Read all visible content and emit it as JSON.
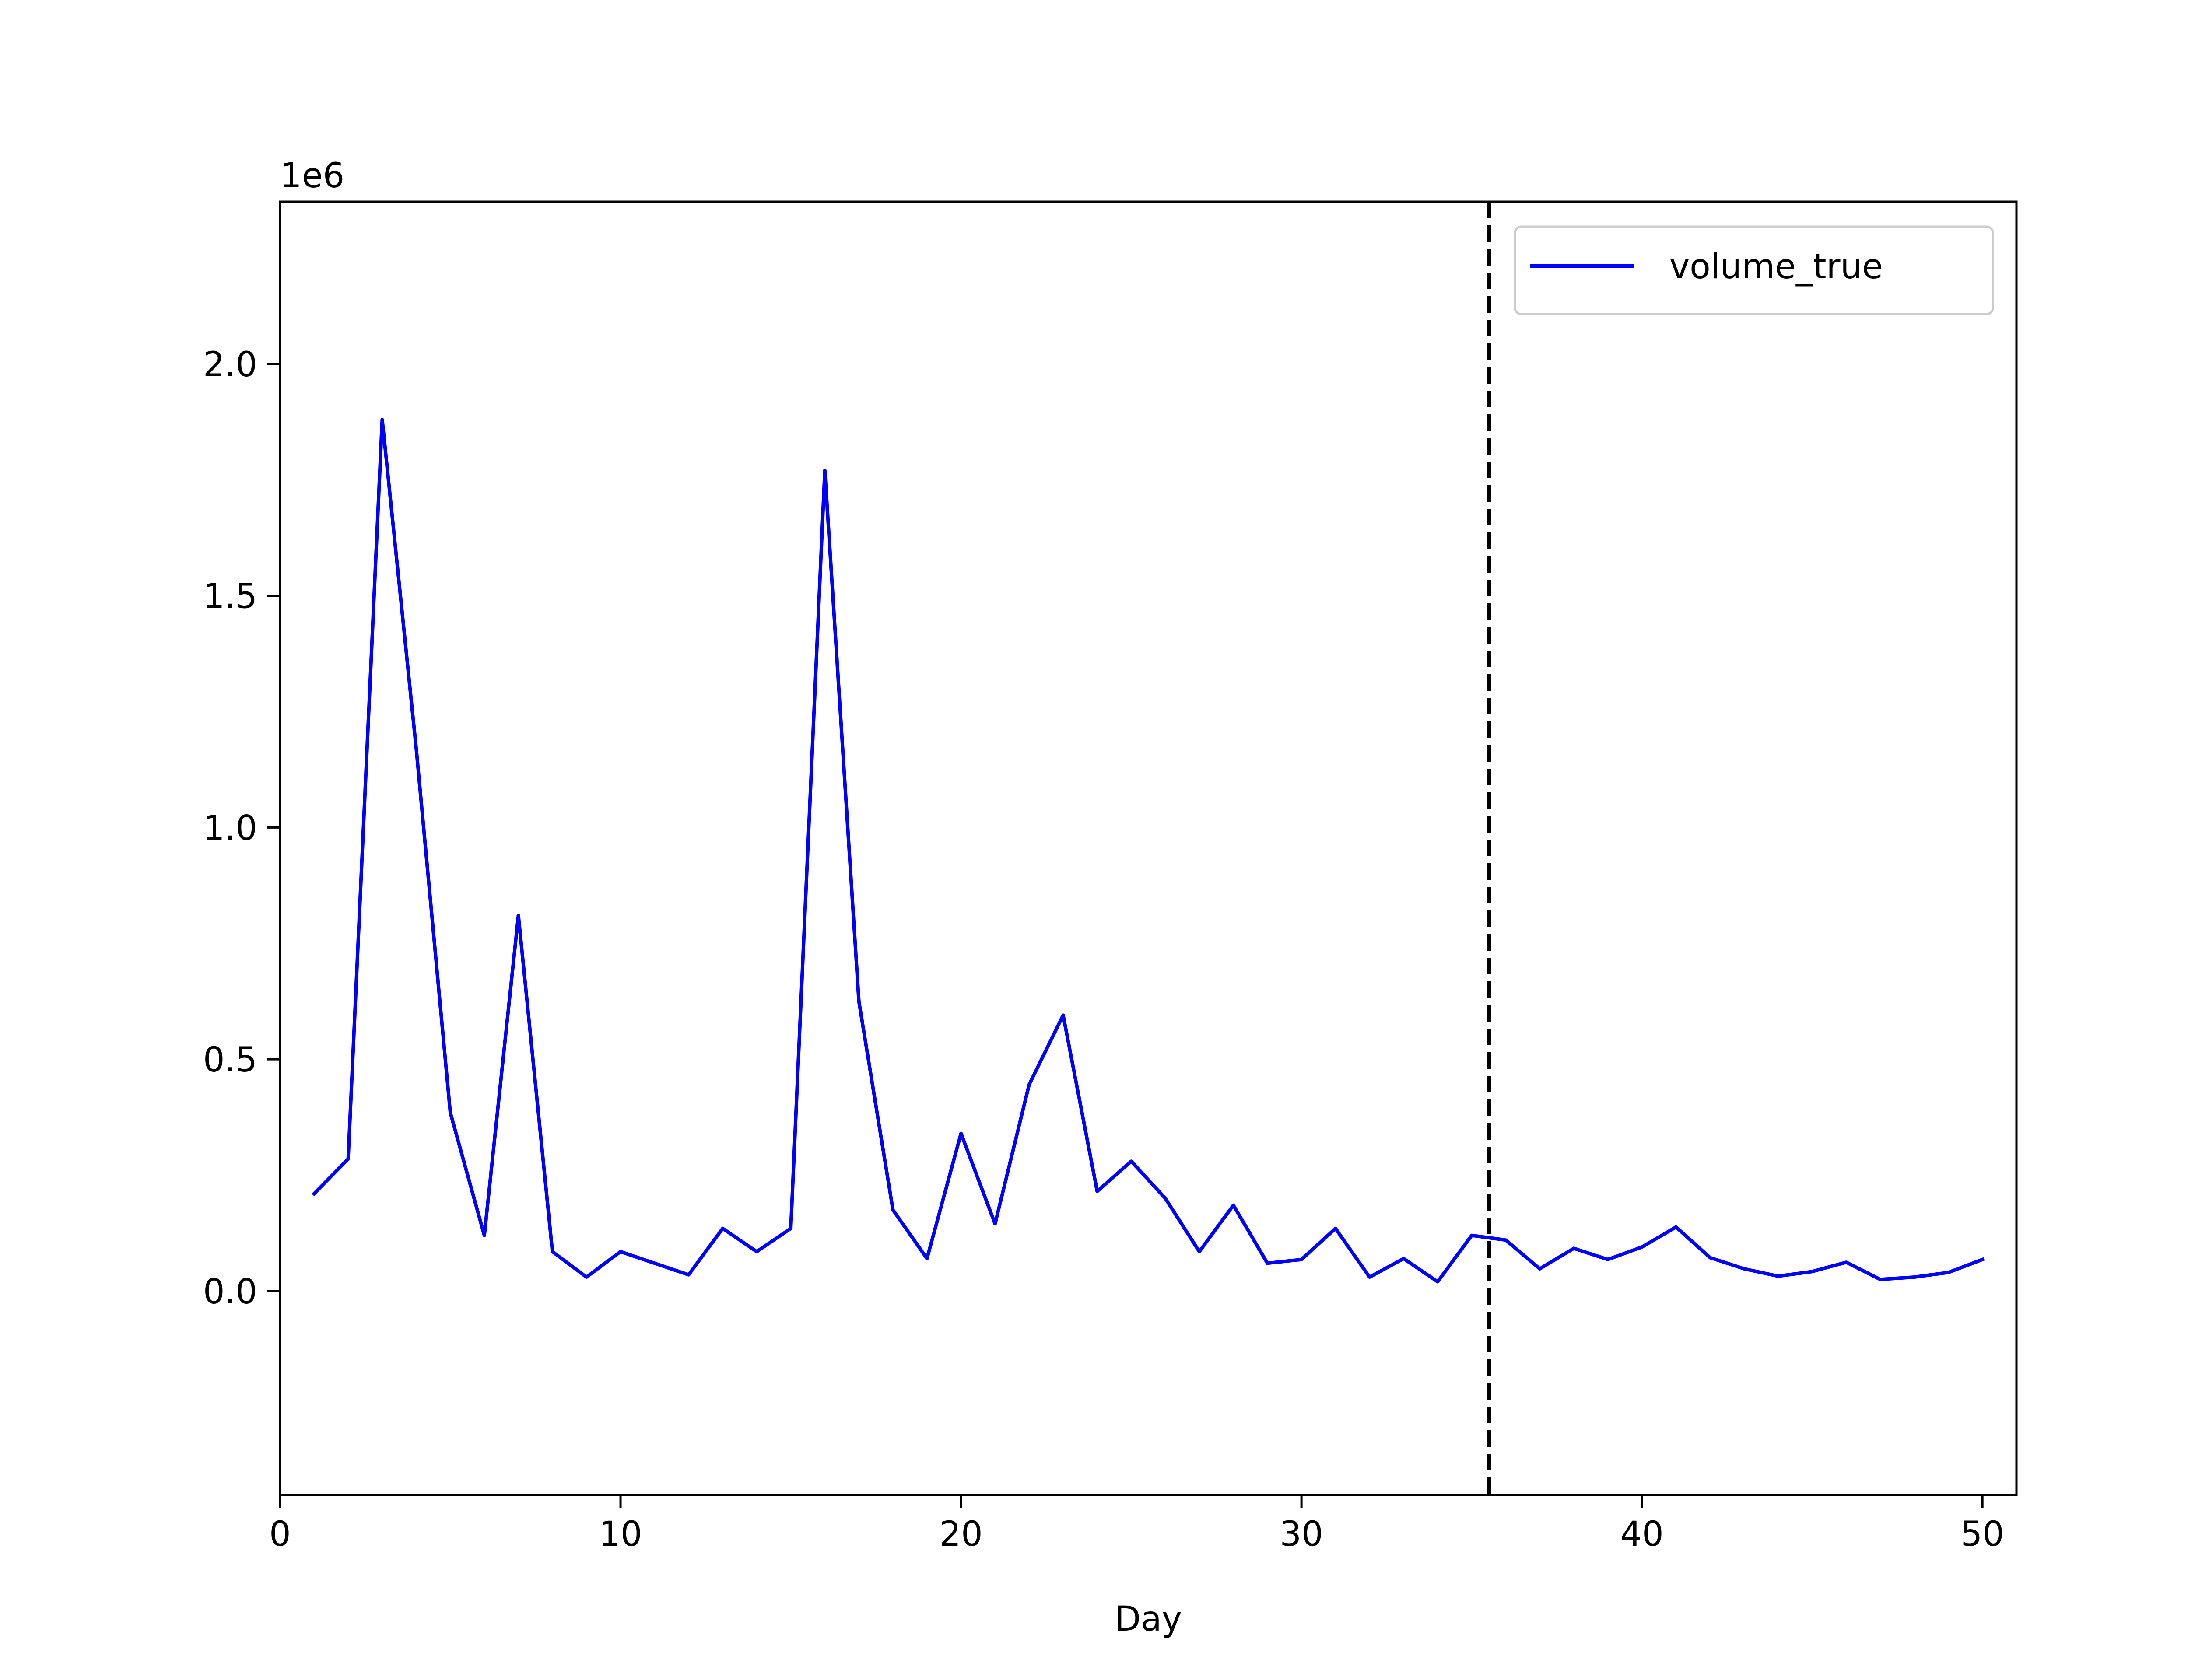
{
  "chart_data": {
    "type": "line",
    "title": "",
    "xlabel": "Day",
    "ylabel": "",
    "y_offset_label": "1e6",
    "xlim": [
      0,
      51
    ],
    "ylim": [
      -0.44,
      2.35
    ],
    "x_ticks": [
      0,
      10,
      20,
      30,
      40,
      50
    ],
    "x_tick_labels": [
      "0",
      "10",
      "20",
      "30",
      "40",
      "50"
    ],
    "y_ticks": [
      0.0,
      0.5,
      1.0,
      1.5,
      2.0
    ],
    "y_tick_labels": [
      "0.0",
      "0.5",
      "1.0",
      "1.5",
      "2.0"
    ],
    "grid": false,
    "legend_position": "top-right",
    "vertical_line": {
      "x": 35.5,
      "style": "dashed",
      "color": "#000000"
    },
    "series": [
      {
        "name": "volume_true",
        "color": "#0000ff",
        "x": [
          1,
          2,
          3,
          4,
          5,
          6,
          7,
          8,
          9,
          10,
          11,
          12,
          13,
          14,
          15,
          16,
          17,
          18,
          19,
          20,
          21,
          22,
          23,
          24,
          25,
          26,
          27,
          28,
          29,
          30,
          31,
          32,
          33,
          34,
          35,
          36,
          37,
          38,
          39,
          40,
          41,
          42,
          43,
          44,
          45,
          46,
          47,
          48,
          49,
          50
        ],
        "values": [
          0.21,
          0.285,
          1.88,
          1.17,
          0.385,
          0.12,
          0.81,
          0.085,
          0.03,
          0.085,
          0.06,
          0.035,
          0.135,
          0.085,
          0.135,
          1.77,
          0.625,
          0.175,
          0.07,
          0.34,
          0.145,
          0.445,
          0.595,
          0.215,
          0.28,
          0.2,
          0.085,
          0.185,
          0.06,
          0.068,
          0.135,
          0.03,
          0.07,
          0.02,
          0.12,
          0.11,
          0.048,
          0.092,
          0.068,
          0.095,
          0.138,
          0.072,
          0.048,
          0.032,
          0.042,
          0.062,
          0.025,
          0.03,
          0.04,
          0.068
        ]
      }
    ]
  }
}
